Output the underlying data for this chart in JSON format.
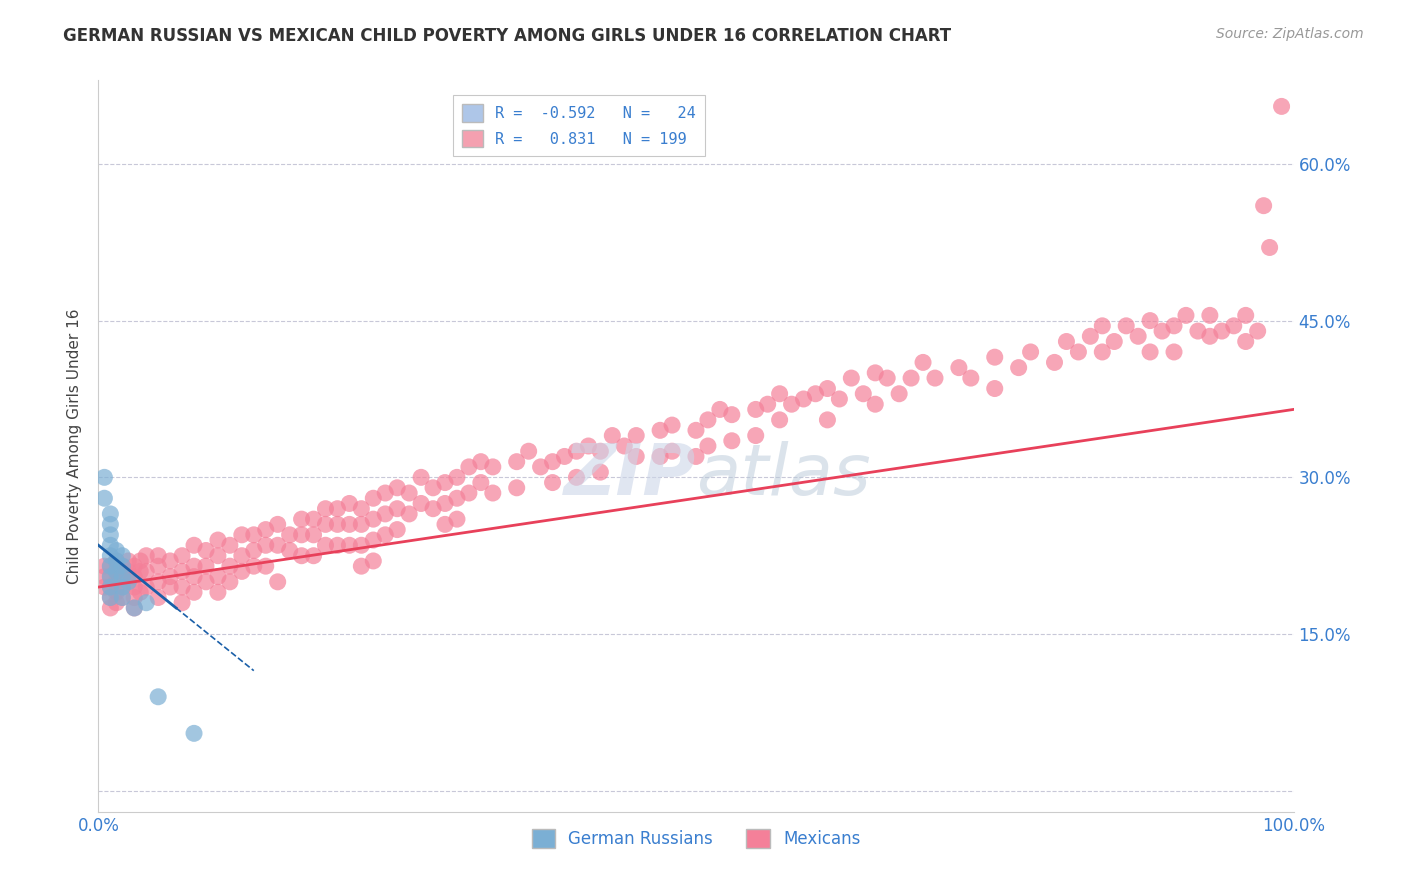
{
  "title": "GERMAN RUSSIAN VS MEXICAN CHILD POVERTY AMONG GIRLS UNDER 16 CORRELATION CHART",
  "source": "Source: ZipAtlas.com",
  "ylabel": "Child Poverty Among Girls Under 16",
  "xlim": [
    0.0,
    1.0
  ],
  "ylim": [
    -0.02,
    0.68
  ],
  "yticks": [
    0.0,
    0.15,
    0.3,
    0.45,
    0.6
  ],
  "ytick_labels": [
    "",
    "15.0%",
    "30.0%",
    "45.0%",
    "60.0%"
  ],
  "xticks": [
    0.0,
    1.0
  ],
  "xtick_labels": [
    "0.0%",
    "100.0%"
  ],
  "legend_entries": [
    {
      "label": "R =  -0.592   N =   24",
      "color": "#aec6e8"
    },
    {
      "label": "R =   0.831   N = 199",
      "color": "#f4a0b0"
    }
  ],
  "german_russian_color": "#7bafd4",
  "mexican_color": "#f48099",
  "german_russian_line_color": "#1a5fa8",
  "mexican_line_color": "#e8405a",
  "watermark_zip": "ZIP",
  "watermark_atlas": "atlas",
  "background_color": "#ffffff",
  "grid_color": "#c8c8d8",
  "german_russian_points": [
    [
      0.005,
      0.3
    ],
    [
      0.005,
      0.28
    ],
    [
      0.01,
      0.265
    ],
    [
      0.01,
      0.255
    ],
    [
      0.01,
      0.245
    ],
    [
      0.01,
      0.235
    ],
    [
      0.01,
      0.225
    ],
    [
      0.01,
      0.215
    ],
    [
      0.01,
      0.205
    ],
    [
      0.01,
      0.195
    ],
    [
      0.01,
      0.185
    ],
    [
      0.015,
      0.23
    ],
    [
      0.015,
      0.22
    ],
    [
      0.015,
      0.21
    ],
    [
      0.02,
      0.225
    ],
    [
      0.02,
      0.215
    ],
    [
      0.02,
      0.205
    ],
    [
      0.02,
      0.195
    ],
    [
      0.02,
      0.185
    ],
    [
      0.025,
      0.2
    ],
    [
      0.03,
      0.175
    ],
    [
      0.04,
      0.18
    ],
    [
      0.05,
      0.09
    ],
    [
      0.08,
      0.055
    ]
  ],
  "mexican_points": [
    [
      0.005,
      0.215
    ],
    [
      0.005,
      0.205
    ],
    [
      0.005,
      0.195
    ],
    [
      0.01,
      0.215
    ],
    [
      0.01,
      0.205
    ],
    [
      0.01,
      0.195
    ],
    [
      0.01,
      0.185
    ],
    [
      0.01,
      0.175
    ],
    [
      0.015,
      0.22
    ],
    [
      0.015,
      0.21
    ],
    [
      0.015,
      0.2
    ],
    [
      0.015,
      0.19
    ],
    [
      0.015,
      0.18
    ],
    [
      0.02,
      0.215
    ],
    [
      0.02,
      0.205
    ],
    [
      0.02,
      0.195
    ],
    [
      0.02,
      0.185
    ],
    [
      0.025,
      0.22
    ],
    [
      0.025,
      0.21
    ],
    [
      0.025,
      0.2
    ],
    [
      0.03,
      0.215
    ],
    [
      0.03,
      0.205
    ],
    [
      0.03,
      0.195
    ],
    [
      0.03,
      0.185
    ],
    [
      0.03,
      0.175
    ],
    [
      0.035,
      0.22
    ],
    [
      0.035,
      0.21
    ],
    [
      0.035,
      0.19
    ],
    [
      0.04,
      0.225
    ],
    [
      0.04,
      0.21
    ],
    [
      0.04,
      0.195
    ],
    [
      0.05,
      0.225
    ],
    [
      0.05,
      0.215
    ],
    [
      0.05,
      0.2
    ],
    [
      0.05,
      0.185
    ],
    [
      0.06,
      0.22
    ],
    [
      0.06,
      0.205
    ],
    [
      0.06,
      0.195
    ],
    [
      0.07,
      0.225
    ],
    [
      0.07,
      0.21
    ],
    [
      0.07,
      0.195
    ],
    [
      0.07,
      0.18
    ],
    [
      0.08,
      0.235
    ],
    [
      0.08,
      0.215
    ],
    [
      0.08,
      0.205
    ],
    [
      0.08,
      0.19
    ],
    [
      0.09,
      0.23
    ],
    [
      0.09,
      0.215
    ],
    [
      0.09,
      0.2
    ],
    [
      0.1,
      0.24
    ],
    [
      0.1,
      0.225
    ],
    [
      0.1,
      0.205
    ],
    [
      0.1,
      0.19
    ],
    [
      0.11,
      0.235
    ],
    [
      0.11,
      0.215
    ],
    [
      0.11,
      0.2
    ],
    [
      0.12,
      0.245
    ],
    [
      0.12,
      0.225
    ],
    [
      0.12,
      0.21
    ],
    [
      0.13,
      0.245
    ],
    [
      0.13,
      0.23
    ],
    [
      0.13,
      0.215
    ],
    [
      0.14,
      0.25
    ],
    [
      0.14,
      0.235
    ],
    [
      0.14,
      0.215
    ],
    [
      0.15,
      0.255
    ],
    [
      0.15,
      0.235
    ],
    [
      0.15,
      0.2
    ],
    [
      0.16,
      0.245
    ],
    [
      0.16,
      0.23
    ],
    [
      0.17,
      0.26
    ],
    [
      0.17,
      0.245
    ],
    [
      0.17,
      0.225
    ],
    [
      0.18,
      0.26
    ],
    [
      0.18,
      0.245
    ],
    [
      0.18,
      0.225
    ],
    [
      0.19,
      0.27
    ],
    [
      0.19,
      0.255
    ],
    [
      0.19,
      0.235
    ],
    [
      0.2,
      0.27
    ],
    [
      0.2,
      0.255
    ],
    [
      0.2,
      0.235
    ],
    [
      0.21,
      0.275
    ],
    [
      0.21,
      0.255
    ],
    [
      0.21,
      0.235
    ],
    [
      0.22,
      0.27
    ],
    [
      0.22,
      0.255
    ],
    [
      0.22,
      0.235
    ],
    [
      0.22,
      0.215
    ],
    [
      0.23,
      0.28
    ],
    [
      0.23,
      0.26
    ],
    [
      0.23,
      0.24
    ],
    [
      0.23,
      0.22
    ],
    [
      0.24,
      0.285
    ],
    [
      0.24,
      0.265
    ],
    [
      0.24,
      0.245
    ],
    [
      0.25,
      0.29
    ],
    [
      0.25,
      0.27
    ],
    [
      0.25,
      0.25
    ],
    [
      0.26,
      0.285
    ],
    [
      0.26,
      0.265
    ],
    [
      0.27,
      0.3
    ],
    [
      0.27,
      0.275
    ],
    [
      0.28,
      0.29
    ],
    [
      0.28,
      0.27
    ],
    [
      0.29,
      0.295
    ],
    [
      0.29,
      0.275
    ],
    [
      0.29,
      0.255
    ],
    [
      0.3,
      0.3
    ],
    [
      0.3,
      0.28
    ],
    [
      0.3,
      0.26
    ],
    [
      0.31,
      0.31
    ],
    [
      0.31,
      0.285
    ],
    [
      0.32,
      0.315
    ],
    [
      0.32,
      0.295
    ],
    [
      0.33,
      0.31
    ],
    [
      0.33,
      0.285
    ],
    [
      0.35,
      0.315
    ],
    [
      0.35,
      0.29
    ],
    [
      0.36,
      0.325
    ],
    [
      0.37,
      0.31
    ],
    [
      0.38,
      0.315
    ],
    [
      0.38,
      0.295
    ],
    [
      0.39,
      0.32
    ],
    [
      0.4,
      0.325
    ],
    [
      0.4,
      0.3
    ],
    [
      0.41,
      0.33
    ],
    [
      0.42,
      0.325
    ],
    [
      0.42,
      0.305
    ],
    [
      0.43,
      0.34
    ],
    [
      0.44,
      0.33
    ],
    [
      0.45,
      0.34
    ],
    [
      0.45,
      0.32
    ],
    [
      0.47,
      0.345
    ],
    [
      0.47,
      0.32
    ],
    [
      0.48,
      0.35
    ],
    [
      0.48,
      0.325
    ],
    [
      0.5,
      0.345
    ],
    [
      0.5,
      0.32
    ],
    [
      0.51,
      0.355
    ],
    [
      0.51,
      0.33
    ],
    [
      0.52,
      0.365
    ],
    [
      0.53,
      0.36
    ],
    [
      0.53,
      0.335
    ],
    [
      0.55,
      0.365
    ],
    [
      0.55,
      0.34
    ],
    [
      0.56,
      0.37
    ],
    [
      0.57,
      0.38
    ],
    [
      0.57,
      0.355
    ],
    [
      0.58,
      0.37
    ],
    [
      0.59,
      0.375
    ],
    [
      0.6,
      0.38
    ],
    [
      0.61,
      0.385
    ],
    [
      0.61,
      0.355
    ],
    [
      0.62,
      0.375
    ],
    [
      0.63,
      0.395
    ],
    [
      0.64,
      0.38
    ],
    [
      0.65,
      0.4
    ],
    [
      0.65,
      0.37
    ],
    [
      0.66,
      0.395
    ],
    [
      0.67,
      0.38
    ],
    [
      0.68,
      0.395
    ],
    [
      0.69,
      0.41
    ],
    [
      0.7,
      0.395
    ],
    [
      0.72,
      0.405
    ],
    [
      0.73,
      0.395
    ],
    [
      0.75,
      0.415
    ],
    [
      0.75,
      0.385
    ],
    [
      0.77,
      0.405
    ],
    [
      0.78,
      0.42
    ],
    [
      0.8,
      0.41
    ],
    [
      0.81,
      0.43
    ],
    [
      0.82,
      0.42
    ],
    [
      0.83,
      0.435
    ],
    [
      0.84,
      0.445
    ],
    [
      0.84,
      0.42
    ],
    [
      0.85,
      0.43
    ],
    [
      0.86,
      0.445
    ],
    [
      0.87,
      0.435
    ],
    [
      0.88,
      0.45
    ],
    [
      0.88,
      0.42
    ],
    [
      0.89,
      0.44
    ],
    [
      0.9,
      0.445
    ],
    [
      0.9,
      0.42
    ],
    [
      0.91,
      0.455
    ],
    [
      0.92,
      0.44
    ],
    [
      0.93,
      0.455
    ],
    [
      0.93,
      0.435
    ],
    [
      0.94,
      0.44
    ],
    [
      0.95,
      0.445
    ],
    [
      0.96,
      0.455
    ],
    [
      0.96,
      0.43
    ],
    [
      0.97,
      0.44
    ],
    [
      0.975,
      0.56
    ],
    [
      0.98,
      0.52
    ],
    [
      0.99,
      0.655
    ]
  ],
  "gr_line": {
    "x0": 0.0,
    "y0": 0.235,
    "x1": 0.065,
    "y1": 0.175,
    "dash_x1": 0.13,
    "dash_y1": 0.115
  },
  "mex_line": {
    "x0": 0.0,
    "y0": 0.195,
    "x1": 1.0,
    "y1": 0.365
  }
}
